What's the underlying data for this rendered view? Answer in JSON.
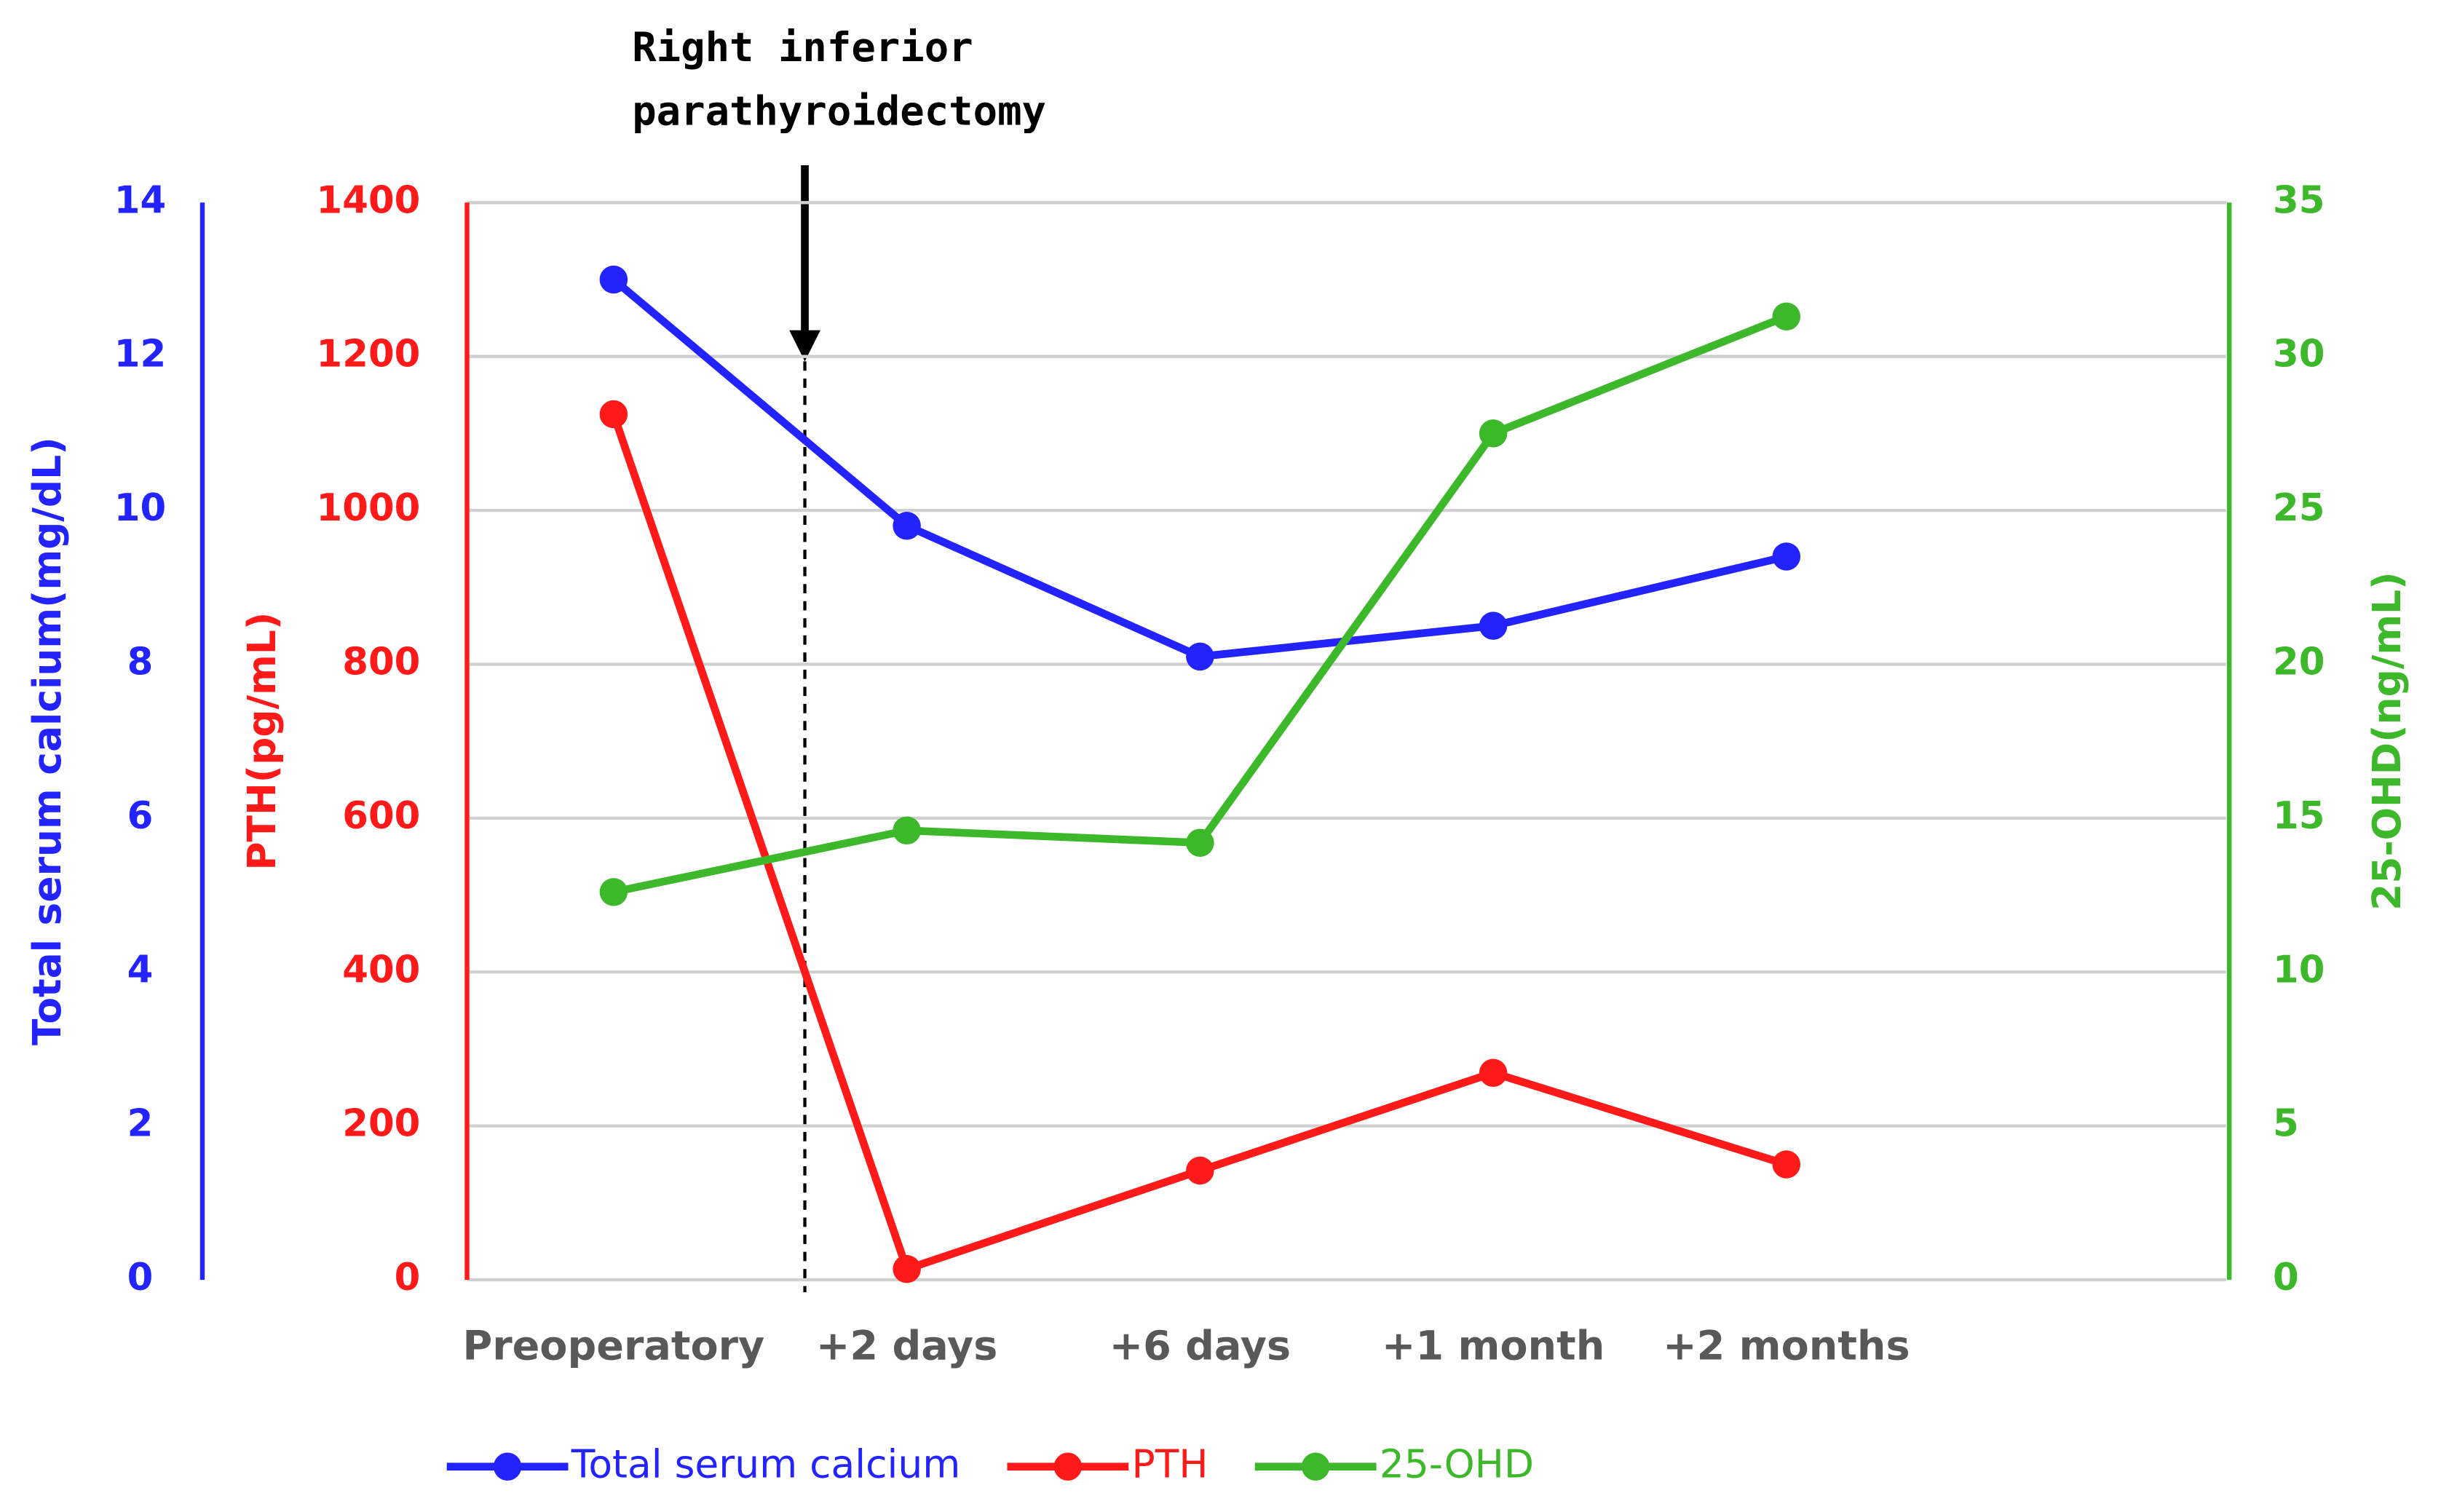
{
  "chart_data": {
    "type": "line",
    "annotation": [
      "Right inferior",
      "parathyroidectomy"
    ],
    "categories": [
      "Preoperatory",
      "+2 days",
      "+6 days",
      "+1 month",
      "+2 months",
      null
    ],
    "ylabel": "Total serum calcium(mg/dL)",
    "ylim": [
      0,
      14
    ],
    "yticks": [
      0,
      2,
      4,
      6,
      8,
      10,
      12,
      14
    ],
    "ycolor": "#2323ff",
    "y2label": "PTH(pg/mL)",
    "y2lim": [
      0,
      1400
    ],
    "y2ticks": [
      0,
      200,
      400,
      600,
      800,
      1000,
      1200,
      1400
    ],
    "y2color": "#ff1a1a",
    "y3label": "25-OHD(ng/mL)",
    "y3lim": [
      0,
      35
    ],
    "y3ticks": [
      0,
      5,
      10,
      15,
      20,
      25,
      30,
      35
    ],
    "y3color": "#3db82a",
    "grid": true,
    "series": [
      {
        "name": "Total serum calcium",
        "color": "#2323ff",
        "axis": "y",
        "values": [
          13.0,
          9.8,
          8.1,
          8.5,
          9.4,
          null
        ]
      },
      {
        "name": "PTH",
        "color": "#ff1a1a",
        "axis": "y2",
        "values": [
          1125,
          14,
          142,
          269,
          150,
          null
        ]
      },
      {
        "name": "25-OHD",
        "color": "#3db82a",
        "axis": "y3",
        "values": [
          12.6,
          14.6,
          14.2,
          27.5,
          31.3,
          null
        ]
      }
    ]
  }
}
